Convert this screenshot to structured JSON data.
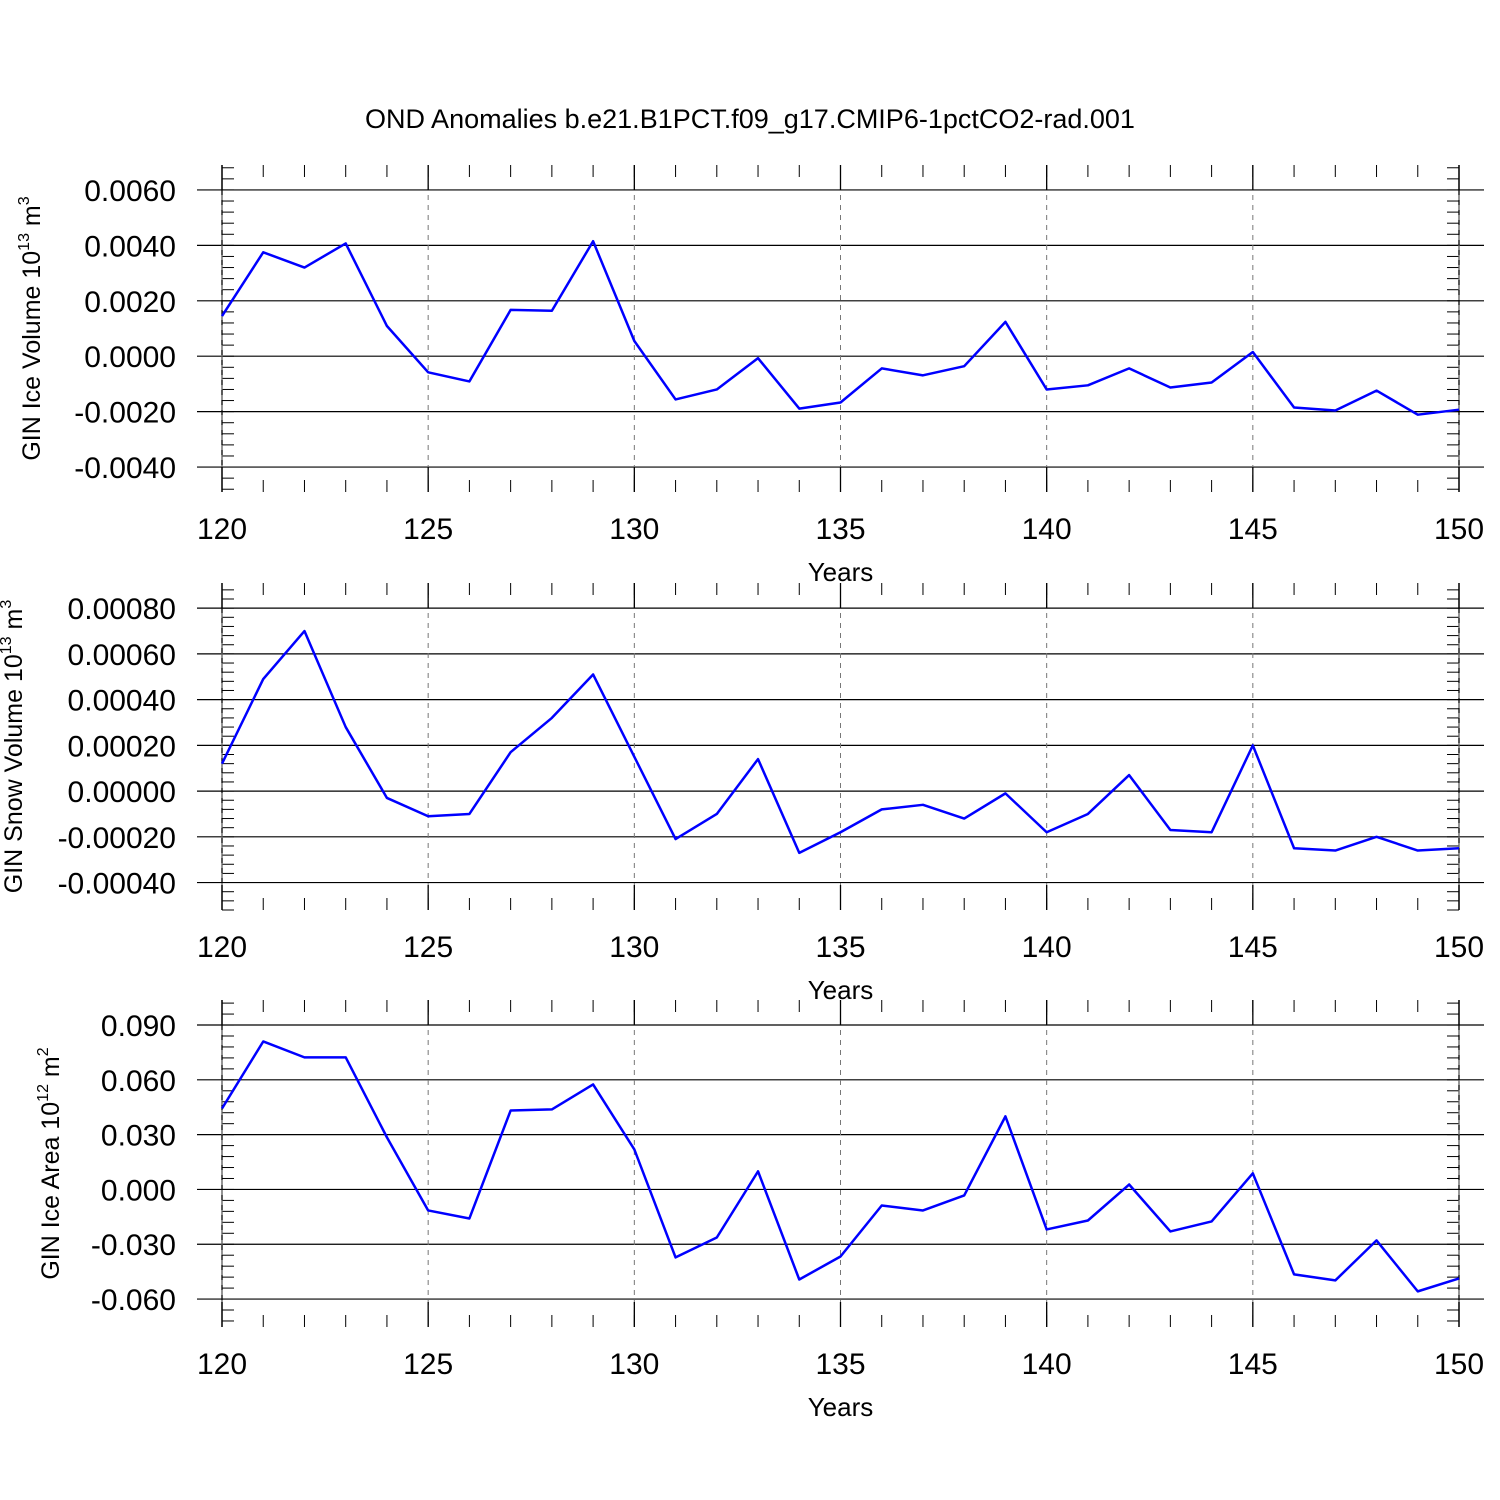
{
  "chart_data": [
    {
      "type": "line",
      "title": "OND Anomalies b.e21.B1PCT.f09_g17.CMIP6-1pctCO2-rad.001",
      "ylabel": {
        "text": "GIN Ice Volume 10",
        "sup": "13",
        "unit": " m",
        "unit_sup": "3"
      },
      "xlabel": "Years",
      "x": [
        120,
        121,
        122,
        123,
        124,
        125,
        126,
        127,
        128,
        129,
        130,
        131,
        132,
        133,
        134,
        135,
        136,
        137,
        138,
        139,
        140,
        141,
        142,
        143,
        144,
        145,
        146,
        147,
        148,
        149,
        150
      ],
      "series": [
        {
          "color": "#0000ff",
          "values": [
            0.00145,
            0.00375,
            0.0032,
            0.00407,
            0.00109,
            -0.00058,
            -0.00091,
            0.00167,
            0.00164,
            0.00415,
            0.00055,
            -0.00156,
            -0.0012,
            -7e-05,
            -0.00189,
            -0.00167,
            -0.00044,
            -0.00069,
            -0.00036,
            0.00124,
            -0.0012,
            -0.00105,
            -0.00044,
            -0.00113,
            -0.00095,
            0.00015,
            -0.00185,
            -0.00196,
            -0.00124,
            -0.00211,
            -0.00193
          ]
        }
      ],
      "xlim": [
        120,
        150
      ],
      "xticks": [
        120,
        125,
        130,
        135,
        140,
        145,
        150
      ],
      "ylim": [
        -0.0049,
        0.0069
      ],
      "yticks": [
        {
          "value": -0.004,
          "label": "-0.0040"
        },
        {
          "value": -0.002,
          "label": "-0.0020"
        },
        {
          "value": 0,
          "label": "0.0000"
        },
        {
          "value": 0.002,
          "label": "0.0020"
        },
        {
          "value": 0.004,
          "label": "0.0040"
        },
        {
          "value": 0.006,
          "label": "0.0060"
        }
      ],
      "grid": true
    },
    {
      "type": "line",
      "ylabel": {
        "text": "GIN Snow Volume 10",
        "sup": "13",
        "unit": " m",
        "unit_sup": "3"
      },
      "xlabel": "Years",
      "x": [
        120,
        121,
        122,
        123,
        124,
        125,
        126,
        127,
        128,
        129,
        130,
        131,
        132,
        133,
        134,
        135,
        136,
        137,
        138,
        139,
        140,
        141,
        142,
        143,
        144,
        145,
        146,
        147,
        148,
        149,
        150
      ],
      "series": [
        {
          "color": "#0000ff",
          "values": [
            0.00012,
            0.00049,
            0.0007,
            0.00028,
            -3e-05,
            -0.00011,
            -0.0001,
            0.00017,
            0.00032,
            0.00051,
            0.00015,
            -0.00021,
            -0.0001,
            0.00014,
            -0.00027,
            -0.00018,
            -8e-05,
            -6e-05,
            -0.00012,
            -1e-05,
            -0.00018,
            -0.0001,
            7e-05,
            -0.00017,
            -0.00018,
            0.0002,
            -0.00025,
            -0.00026,
            -0.0002,
            -0.00026,
            -0.00025
          ]
        }
      ],
      "xlim": [
        120,
        150
      ],
      "xticks": [
        120,
        125,
        130,
        135,
        140,
        145,
        150
      ],
      "ylim": [
        -0.00052,
        0.00091
      ],
      "yticks": [
        {
          "value": -0.0004,
          "label": "-0.00040"
        },
        {
          "value": -0.0002,
          "label": "-0.00020"
        },
        {
          "value": 0,
          "label": "0.00000"
        },
        {
          "value": 0.0002,
          "label": "0.00020"
        },
        {
          "value": 0.0004,
          "label": "0.00040"
        },
        {
          "value": 0.0006,
          "label": "0.00060"
        },
        {
          "value": 0.0008,
          "label": "0.00080"
        }
      ],
      "grid": true
    },
    {
      "type": "line",
      "ylabel": {
        "text": "GIN Ice Area 10",
        "sup": "12",
        "unit": " m",
        "unit_sup": "2"
      },
      "xlabel": "Years",
      "x": [
        120,
        121,
        122,
        123,
        124,
        125,
        126,
        127,
        128,
        129,
        130,
        131,
        132,
        133,
        134,
        135,
        136,
        137,
        138,
        139,
        140,
        141,
        142,
        143,
        144,
        145,
        146,
        147,
        148,
        149,
        150
      ],
      "series": [
        {
          "color": "#0000ff",
          "values": [
            0.0443,
            0.081,
            0.0723,
            0.0723,
            0.0285,
            -0.0115,
            -0.0159,
            0.0432,
            0.0438,
            0.0575,
            0.0219,
            -0.0372,
            -0.0263,
            0.0099,
            -0.0493,
            -0.0367,
            -0.0088,
            -0.0115,
            -0.0033,
            0.04,
            -0.0219,
            -0.017,
            0.0027,
            -0.023,
            -0.0175,
            0.0088,
            -0.0465,
            -0.0498,
            -0.0279,
            -0.0558,
            -0.0487
          ]
        }
      ],
      "xlim": [
        120,
        150
      ],
      "xticks": [
        120,
        125,
        130,
        135,
        140,
        145,
        150
      ],
      "ylim": [
        -0.0753,
        0.1037
      ],
      "yticks": [
        {
          "value": -0.06,
          "label": "-0.060"
        },
        {
          "value": -0.03,
          "label": "-0.030"
        },
        {
          "value": 0,
          "label": "0.000"
        },
        {
          "value": 0.03,
          "label": "0.030"
        },
        {
          "value": 0.06,
          "label": "0.060"
        },
        {
          "value": 0.09,
          "label": "0.090"
        }
      ],
      "grid": true
    }
  ]
}
